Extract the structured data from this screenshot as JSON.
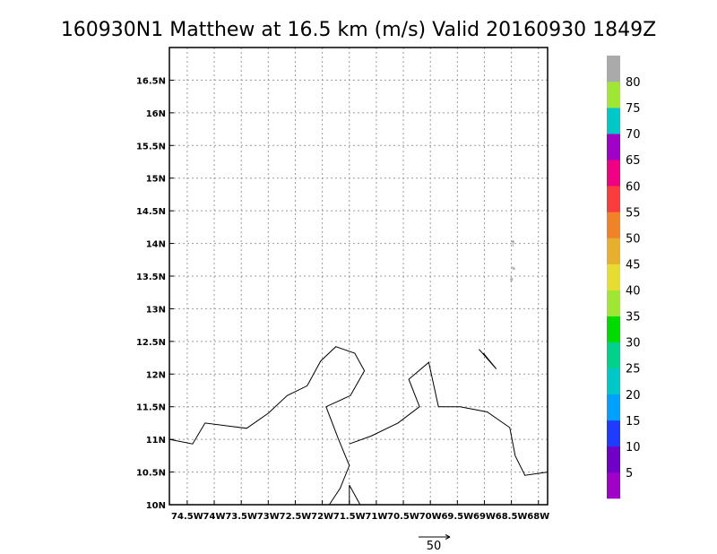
{
  "title": "160930N1 Matthew at 16.5 km (m/s) Valid 20160930 1849Z",
  "map": {
    "lon_range": [
      -74.83,
      -67.83
    ],
    "lat_range": [
      10.0,
      17.0
    ],
    "x_ticks": [
      {
        "value": -74.5,
        "label": "74.5W"
      },
      {
        "value": -74.0,
        "label": "74W"
      },
      {
        "value": -73.5,
        "label": "73.5W"
      },
      {
        "value": -73.0,
        "label": "73W"
      },
      {
        "value": -72.5,
        "label": "72.5W"
      },
      {
        "value": -72.0,
        "label": "72W"
      },
      {
        "value": -71.5,
        "label": "71.5W"
      },
      {
        "value": -71.0,
        "label": "71W"
      },
      {
        "value": -70.5,
        "label": "70.5W"
      },
      {
        "value": -70.0,
        "label": "70W"
      },
      {
        "value": -69.5,
        "label": "69.5W"
      },
      {
        "value": -69.0,
        "label": "69W"
      },
      {
        "value": -68.5,
        "label": "68.5W"
      },
      {
        "value": -68.0,
        "label": "68W"
      }
    ],
    "y_ticks": [
      {
        "value": 10.0,
        "label": "10N"
      },
      {
        "value": 10.5,
        "label": "10.5N"
      },
      {
        "value": 11.0,
        "label": "11N"
      },
      {
        "value": 11.5,
        "label": "11.5N"
      },
      {
        "value": 12.0,
        "label": "12N"
      },
      {
        "value": 12.5,
        "label": "12.5N"
      },
      {
        "value": 13.0,
        "label": "13N"
      },
      {
        "value": 13.5,
        "label": "13.5N"
      },
      {
        "value": 14.0,
        "label": "14N"
      },
      {
        "value": 14.5,
        "label": "14.5N"
      },
      {
        "value": 15.0,
        "label": "15N"
      },
      {
        "value": 15.5,
        "label": "15.5N"
      },
      {
        "value": 16.0,
        "label": "16N"
      },
      {
        "value": 16.5,
        "label": "16.5N"
      }
    ],
    "grid": true,
    "coastlines": [
      [
        [
          -74.83,
          11.0
        ],
        [
          -74.4,
          10.93
        ],
        [
          -74.17,
          11.25
        ],
        [
          -73.4,
          11.17
        ],
        [
          -73.0,
          11.4
        ],
        [
          -72.65,
          11.67
        ],
        [
          -72.28,
          11.82
        ],
        [
          -72.03,
          12.2
        ],
        [
          -71.75,
          12.42
        ],
        [
          -71.4,
          12.32
        ],
        [
          -71.22,
          12.05
        ],
        [
          -71.48,
          11.67
        ],
        [
          -71.93,
          11.5
        ],
        [
          -71.7,
          11.0
        ],
        [
          -71.5,
          10.6
        ],
        [
          -71.67,
          10.25
        ],
        [
          -71.87,
          10.0
        ]
      ],
      [
        [
          -71.5,
          10.0
        ],
        [
          -71.5,
          10.3
        ],
        [
          -71.3,
          10.0
        ]
      ],
      [
        [
          -71.5,
          10.93
        ],
        [
          -71.1,
          11.05
        ],
        [
          -70.6,
          11.25
        ],
        [
          -70.2,
          11.5
        ],
        [
          -70.4,
          11.92
        ],
        [
          -70.03,
          12.18
        ],
        [
          -69.85,
          11.5
        ],
        [
          -69.45,
          11.5
        ],
        [
          -68.95,
          11.42
        ],
        [
          -68.53,
          11.18
        ],
        [
          -68.43,
          10.75
        ],
        [
          -68.25,
          10.45
        ],
        [
          -67.83,
          10.5
        ]
      ],
      [
        [
          -69.1,
          12.38
        ],
        [
          -68.78,
          12.08
        ],
        [
          -69.02,
          12.32
        ]
      ]
    ],
    "wind_vectors": [
      {
        "lon": -68.47,
        "lat": 13.95,
        "u": 0,
        "v": 6
      },
      {
        "lon": -68.5,
        "lat": 13.65,
        "u": 3,
        "v": -3
      },
      {
        "lon": -68.52,
        "lat": 13.42,
        "u": 2,
        "v": 3
      }
    ],
    "vector_color": "#aaaaaa"
  },
  "colorbar": {
    "colors": [
      "#a000c8",
      "#7000c8",
      "#1e3cff",
      "#00a0ff",
      "#00c8c8",
      "#00d28c",
      "#00dc00",
      "#a0e632",
      "#e6dc32",
      "#e6af2d",
      "#f08228",
      "#fa3c3c",
      "#f00082",
      "#a000c8",
      "#00c8c8",
      "#a0e632",
      "#aaaaaa"
    ],
    "labels": [
      "5",
      "10",
      "15",
      "20",
      "25",
      "30",
      "35",
      "40",
      "45",
      "50",
      "55",
      "60",
      "65",
      "70",
      "75",
      "80"
    ]
  },
  "reference_vector": {
    "label": "50"
  }
}
